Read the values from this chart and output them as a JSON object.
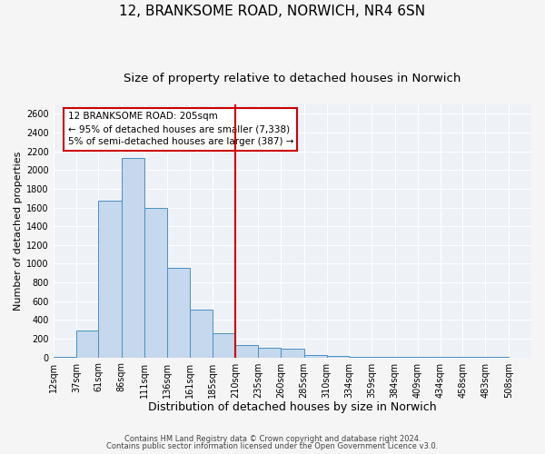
{
  "title1": "12, BRANKSOME ROAD, NORWICH, NR4 6SN",
  "title2": "Size of property relative to detached houses in Norwich",
  "xlabel": "Distribution of detached houses by size in Norwich",
  "ylabel": "Number of detached properties",
  "bar_left_edges": [
    12,
    37,
    61,
    86,
    111,
    136,
    161,
    185,
    210,
    235,
    260,
    285,
    310,
    334,
    359,
    384,
    409,
    434,
    458,
    483
  ],
  "bar_widths": [
    25,
    24,
    25,
    25,
    25,
    25,
    24,
    25,
    25,
    25,
    25,
    25,
    24,
    25,
    25,
    25,
    25,
    24,
    25,
    25
  ],
  "bar_heights": [
    5,
    290,
    1670,
    2130,
    1600,
    960,
    510,
    255,
    130,
    100,
    90,
    30,
    18,
    8,
    8,
    5,
    5,
    5,
    5,
    5
  ],
  "bar_color": "#c5d8ed",
  "bar_edge_color": "#4a90c4",
  "tick_labels": [
    "12sqm",
    "37sqm",
    "61sqm",
    "86sqm",
    "111sqm",
    "136sqm",
    "161sqm",
    "185sqm",
    "210sqm",
    "235sqm",
    "260sqm",
    "285sqm",
    "310sqm",
    "334sqm",
    "359sqm",
    "384sqm",
    "409sqm",
    "434sqm",
    "458sqm",
    "483sqm",
    "508sqm"
  ],
  "vline_x": 210,
  "vline_color": "#cc0000",
  "ylim": [
    0,
    2700
  ],
  "yticks": [
    0,
    200,
    400,
    600,
    800,
    1000,
    1200,
    1400,
    1600,
    1800,
    2000,
    2200,
    2400,
    2600
  ],
  "annotation_title": "12 BRANKSOME ROAD: 205sqm",
  "annotation_line1": "← 95% of detached houses are smaller (7,338)",
  "annotation_line2": "5% of semi-detached houses are larger (387) →",
  "footnote1": "Contains HM Land Registry data © Crown copyright and database right 2024.",
  "footnote2": "Contains public sector information licensed under the Open Government Licence v3.0.",
  "bg_color": "#eef2f7",
  "grid_color": "#ffffff",
  "title1_fontsize": 11,
  "title2_fontsize": 9.5,
  "xlabel_fontsize": 9,
  "ylabel_fontsize": 8,
  "tick_fontsize": 7,
  "footnote_fontsize": 6,
  "annot_fontsize": 7.5
}
